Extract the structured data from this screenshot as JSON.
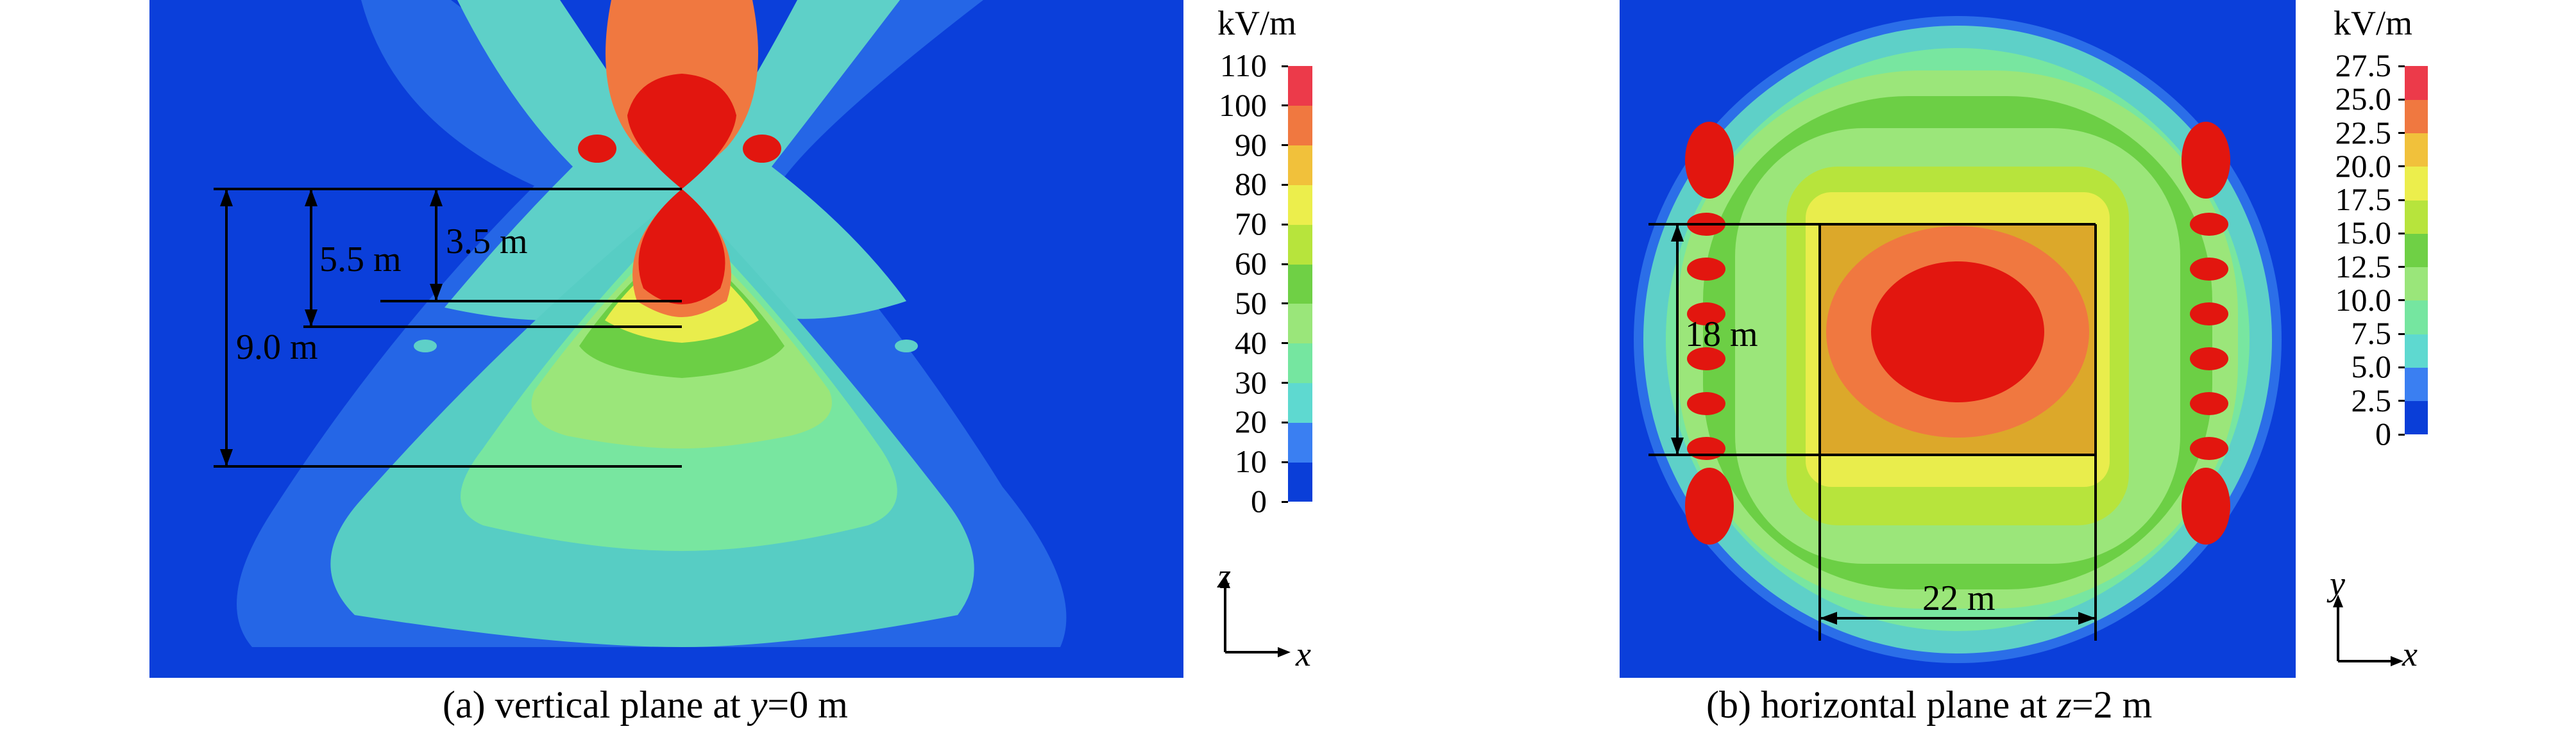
{
  "panel_a": {
    "caption_prefix": "(a) vertical plane at ",
    "caption_var": "y",
    "caption_suffix": "=0 m",
    "dims": [
      "3.5 m",
      "5.5 m",
      "9.0 m"
    ],
    "axis_vertical": "z",
    "axis_horizontal": "x",
    "colorbar": {
      "unit": "kV/m",
      "ticks": [
        "0",
        "10",
        "20",
        "30",
        "40",
        "50",
        "60",
        "70",
        "80",
        "90",
        "100",
        "110"
      ]
    }
  },
  "panel_b": {
    "caption_prefix": "(b) horizontal plane at ",
    "caption_var": "z",
    "caption_suffix": "=2 m",
    "dims": [
      "18 m",
      "22 m"
    ],
    "axis_vertical": "y",
    "axis_horizontal": "x",
    "colorbar": {
      "unit": "kV/m",
      "ticks": [
        "0",
        "2.5",
        "5.0",
        "7.5",
        "10.0",
        "12.5",
        "15.0",
        "17.5",
        "20.0",
        "22.5",
        "25.0",
        "27.5"
      ]
    }
  },
  "colors": {
    "bands": [
      "#0a3ed8",
      "#3a7ff2",
      "#5ed9d0",
      "#75e6a0",
      "#9ae67a",
      "#6fd045",
      "#b7e43c",
      "#ecee4c",
      "#f1c13b",
      "#f07840",
      "#ec3a4a"
    ],
    "contour_peak": "#e2160f",
    "background": "#1545d6"
  }
}
